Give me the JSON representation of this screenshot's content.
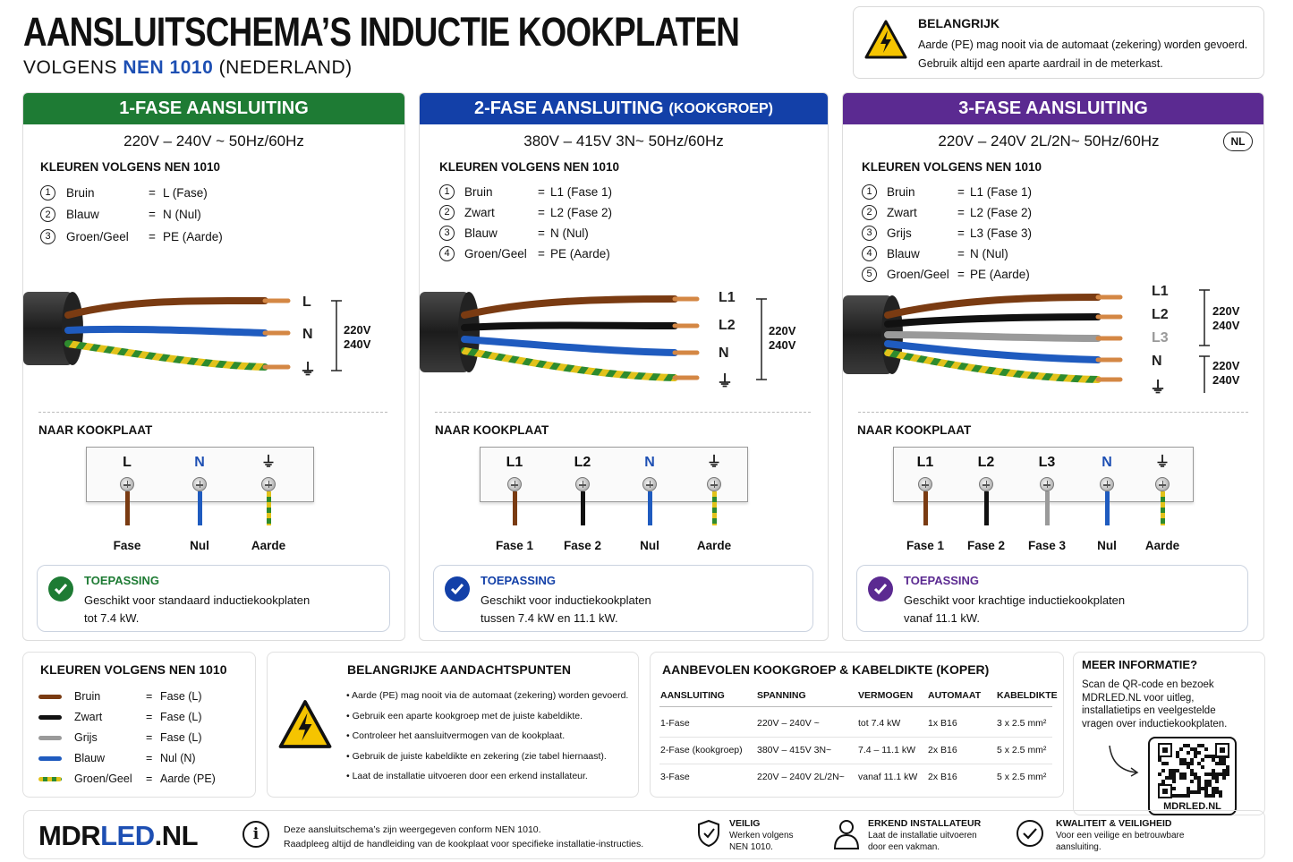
{
  "title": "AANSLUITSCHEMA’S INDUCTIE KOOKPLATEN",
  "subtitle": {
    "pre": "VOLGENS ",
    "nen": "NEN 1010",
    "post": " (NEDERLAND)"
  },
  "warning": {
    "title": "BELANGRIJK",
    "line1": "Aarde (PE) mag nooit via de automaat (zekering) worden gevoerd.",
    "line2": "Gebruik altijd een aparte aardrail in de meterkast.",
    "icon": "high-voltage-warning-icon"
  },
  "colors": {
    "brown": "#7a3b12",
    "blue": "#1f5bbf",
    "black": "#111111",
    "grey": "#9a9a9a",
    "yellow": "#e2c21a",
    "green": "#2e8b2e",
    "green_header": "#1e7b34",
    "blue_header": "#1340a8",
    "purple_header": "#5b2a91"
  },
  "panel1": {
    "header": "1-FASE AANSLUITING",
    "header_sub": "",
    "voltage": "220V – 240V ~   50Hz/60Hz",
    "colors_title": "KLEUREN VOLGENS NEN 1010",
    "colors": [
      {
        "n": "1",
        "name": "Bruin",
        "eq": "=",
        "val": "L  (Fase)"
      },
      {
        "n": "2",
        "name": "Blauw",
        "eq": "=",
        "val": "N  (Nul)"
      },
      {
        "n": "3",
        "name": "Groen/Geel",
        "eq": "=",
        "val": "PE  (Aarde)"
      }
    ],
    "wire_labels": [
      "L",
      "N",
      "⏚"
    ],
    "volt_labels": [
      [
        "220V",
        "240V"
      ]
    ],
    "naar": "NAAR KOOKPLAAT",
    "terminals": [
      {
        "label": "L",
        "bottom": "Fase"
      },
      {
        "label": "N",
        "bottom": "Nul"
      },
      {
        "label": "⏚",
        "bottom": "Aarde"
      }
    ],
    "toepassing": {
      "title": "TOEPASSING",
      "line1": "Geschikt voor standaard inductiekookplaten",
      "line2": "tot 7.4 kW."
    }
  },
  "panel2": {
    "header": "2-FASE AANSLUITING",
    "header_sub": "(KOOKGROEP)",
    "voltage": "380V – 415V 3N~   50Hz/60Hz",
    "colors_title": "KLEUREN VOLGENS NEN 1010",
    "colors": [
      {
        "n": "1",
        "name": "Bruin",
        "eq": "=",
        "val": "L1  (Fase 1)"
      },
      {
        "n": "2",
        "name": "Zwart",
        "eq": "=",
        "val": "L2  (Fase 2)"
      },
      {
        "n": "3",
        "name": "Blauw",
        "eq": "=",
        "val": "N  (Nul)"
      },
      {
        "n": "4",
        "name": "Groen/Geel",
        "eq": "=",
        "val": "PE  (Aarde)"
      }
    ],
    "wire_labels": [
      "L1",
      "L2",
      "N",
      "⏚"
    ],
    "volt_labels": [
      [
        "220V",
        "240V"
      ]
    ],
    "naar": "NAAR KOOKPLAAT",
    "terminals": [
      {
        "label": "L1",
        "bottom": "Fase 1"
      },
      {
        "label": "L2",
        "bottom": "Fase 2"
      },
      {
        "label": "N",
        "bottom": "Nul"
      },
      {
        "label": "⏚",
        "bottom": "Aarde"
      }
    ],
    "toepassing": {
      "title": "TOEPASSING",
      "line1": "Geschikt voor inductiekookplaten",
      "line2": "tussen 7.4 kW en 11.1 kW."
    }
  },
  "panel3": {
    "header": "3-FASE AANSLUITING",
    "header_sub": "",
    "voltage": "220V – 240V 2L/2N~   50Hz/60Hz",
    "nl_badge": "NL",
    "colors_title": "KLEUREN VOLGENS NEN 1010",
    "colors": [
      {
        "n": "1",
        "name": "Bruin",
        "eq": "=",
        "val": "L1  (Fase 1)"
      },
      {
        "n": "2",
        "name": "Zwart",
        "eq": "=",
        "val": "L2  (Fase 2)"
      },
      {
        "n": "3",
        "name": "Grijs",
        "eq": "=",
        "val": "L3  (Fase 3)"
      },
      {
        "n": "4",
        "name": "Blauw",
        "eq": "=",
        "val": "N  (Nul)"
      },
      {
        "n": "5",
        "name": "Groen/Geel",
        "eq": "=",
        "val": "PE  (Aarde)"
      }
    ],
    "wire_labels": [
      "L1",
      "L2",
      "L3",
      "N",
      "⏚"
    ],
    "volt_labels": [
      [
        "220V",
        "240V"
      ],
      [
        "220V",
        "240V"
      ]
    ],
    "naar": "NAAR KOOKPLAAT",
    "terminals": [
      {
        "label": "L1",
        "bottom": "Fase 1"
      },
      {
        "label": "L2",
        "bottom": "Fase 2"
      },
      {
        "label": "L3",
        "bottom": "Fase 3"
      },
      {
        "label": "N",
        "bottom": "Nul"
      },
      {
        "label": "⏚",
        "bottom": "Aarde"
      }
    ],
    "toepassing": {
      "title": "TOEPASSING",
      "line1": "Geschikt voor krachtige inductiekookplaten",
      "line2": "vanaf 11.1 kW."
    }
  },
  "legend": {
    "title": "KLEUREN VOLGENS NEN 1010",
    "rows": [
      {
        "name": "Bruin",
        "eq": "=",
        "val": "Fase (L)"
      },
      {
        "name": "Zwart",
        "eq": "=",
        "val": "Fase (L)"
      },
      {
        "name": "Grijs",
        "eq": "=",
        "val": "Fase (L)"
      },
      {
        "name": "Blauw",
        "eq": "=",
        "val": "Nul (N)"
      },
      {
        "name": "Groen/Geel",
        "eq": "=",
        "val": "Aarde (PE)"
      }
    ]
  },
  "attention": {
    "title": "BELANGRIJKE AANDACHTSPUNTEN",
    "items": [
      "Aarde (PE) mag nooit via de automaat (zekering) worden gevoerd.",
      "Gebruik een aparte kookgroep met de juiste kabeldikte.",
      "Controleer het aansluitvermogen van de kookplaat.",
      "Gebruik de juiste kabeldikte en zekering (zie tabel hiernaast).",
      "Laat de installatie uitvoeren door een erkend installateur."
    ]
  },
  "table": {
    "title": "AANBEVOLEN KOOKGROEP & KABELDIKTE (KOPER)",
    "headers": [
      "AANSLUITING",
      "SPANNING",
      "VERMOGEN",
      "AUTOMAAT",
      "KABELDIKTE"
    ],
    "rows": [
      [
        "1-Fase",
        "220V – 240V ~",
        "tot 7.4 kW",
        "1x B16",
        "3 x 2.5 mm²"
      ],
      [
        "2-Fase (kookgroep)",
        "380V – 415V 3N~",
        "7.4 – 11.1 kW",
        "2x B16",
        "5 x 2.5 mm²"
      ],
      [
        "3-Fase",
        "220V – 240V 2L/2N~",
        "vanaf 11.1 kW",
        "2x B16",
        "5 x 2.5 mm²"
      ]
    ]
  },
  "info": {
    "title": "MEER INFORMATIE?",
    "lines": [
      "Scan de QR-code en bezoek",
      "MDRLED.NL voor uitleg,",
      "installatietips en veelgestelde",
      "vragen over inductiekookplaten."
    ],
    "qr_label": "MDRLED.NL"
  },
  "footer": {
    "logo_a": "MDR",
    "logo_b": "LED",
    "logo_c": ".NL",
    "note1": "Deze aansluitschema’s zijn weergegeven conform NEN 1010.",
    "note2": "Raadpleeg altijd de handleiding van de kookplaat voor specifieke installatie-instructies.",
    "f1_title": "VEILIG",
    "f1_l1": "Werken volgens",
    "f1_l2": "NEN 1010.",
    "f2_title": "ERKEND INSTALLATEUR",
    "f2_l1": "Laat de installatie uitvoeren",
    "f2_l2": "door een vakman.",
    "f3_title": "KWALITEIT & VEILIGHEID",
    "f3_l1": "Voor een veilige en betrouwbare",
    "f3_l2": "aansluiting."
  }
}
